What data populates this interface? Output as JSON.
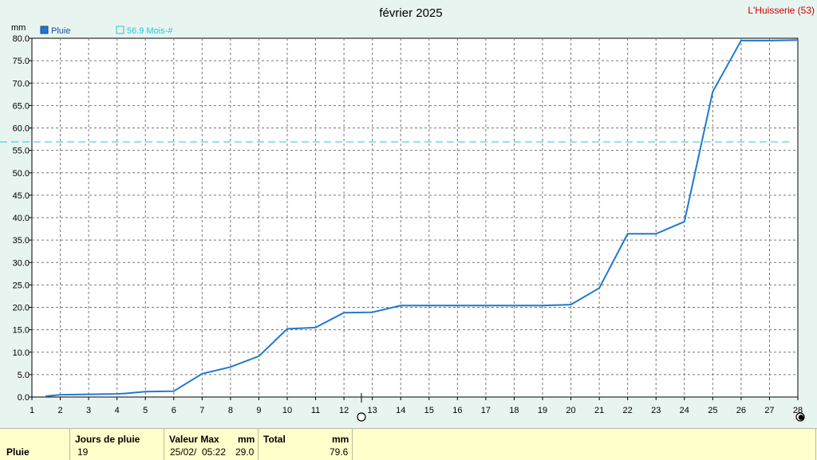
{
  "header": {
    "title": "février 2025",
    "station": "L'Huisserie (53)",
    "unit": "mm"
  },
  "legend": {
    "series_label": "Pluie",
    "reference_label": "56.9 Mois-#"
  },
  "colors": {
    "series": "#1e78d2",
    "reference": "#22c8d8",
    "grid": "#777777",
    "background": "#e8f4f0",
    "plot_background": "#ffffff",
    "station": "#cc0000",
    "summary_background": "#ffffcc"
  },
  "chart_data": {
    "type": "line",
    "title": "février 2025",
    "ylabel": "mm",
    "xlim": [
      1,
      28
    ],
    "ylim": [
      0,
      80
    ],
    "y_ticks": [
      0.0,
      5.0,
      10.0,
      15.0,
      20.0,
      25.0,
      30.0,
      35.0,
      40.0,
      45.0,
      50.0,
      55.0,
      60.0,
      65.0,
      70.0,
      75.0,
      80.0
    ],
    "y_tick_labels": [
      "0.0",
      "5.0",
      "10.0",
      "15.0",
      "20.0",
      "25.0",
      "30.0",
      "35.0",
      "40.0",
      "45.0",
      "50.0",
      "55.0",
      "60.0",
      "65.0",
      "70.0",
      "75.0",
      "80.0"
    ],
    "x_ticks": [
      1,
      2,
      3,
      4,
      5,
      6,
      7,
      8,
      9,
      10,
      11,
      12,
      13,
      14,
      15,
      16,
      17,
      18,
      19,
      20,
      21,
      22,
      23,
      24,
      25,
      26,
      27,
      28
    ],
    "x_tick_labels": [
      "1",
      "2",
      "3",
      "4",
      "5",
      "6",
      "7",
      "8",
      "9",
      "10",
      "11",
      "12",
      "13",
      "14",
      "15",
      "16",
      "17",
      "18",
      "19",
      "20",
      "21",
      "22",
      "23",
      "24",
      "25",
      "26",
      "27",
      "28"
    ],
    "grid": true,
    "series": [
      {
        "name": "Pluie",
        "x": [
          1.5,
          2,
          3,
          4,
          4.3,
          5,
          6,
          7,
          8,
          9,
          10,
          11,
          12,
          13,
          14,
          15,
          16,
          17,
          18,
          19,
          20,
          21,
          22,
          23,
          24,
          25,
          26,
          27,
          28
        ],
        "y": [
          0.2,
          0.5,
          0.6,
          0.7,
          0.8,
          1.2,
          1.3,
          5.2,
          6.7,
          9.1,
          15.2,
          15.5,
          18.8,
          18.9,
          20.4,
          20.4,
          20.4,
          20.4,
          20.4,
          20.4,
          20.6,
          24.3,
          36.4,
          36.4,
          39.1,
          68.1,
          79.5,
          79.5,
          79.6
        ]
      }
    ],
    "reference_line": {
      "label": "56.9 Mois-#",
      "value": 56.9
    }
  },
  "summary": {
    "row_label": "Pluie",
    "col_days": "Jours de pluie",
    "col_max": "Valeur Max",
    "col_max_unit": "mm",
    "col_total": "Total",
    "col_total_unit": "mm",
    "days_value": "19",
    "max_date": "25/02/",
    "max_time": "05:22",
    "max_value": "29.0",
    "total_value": "79.6"
  }
}
